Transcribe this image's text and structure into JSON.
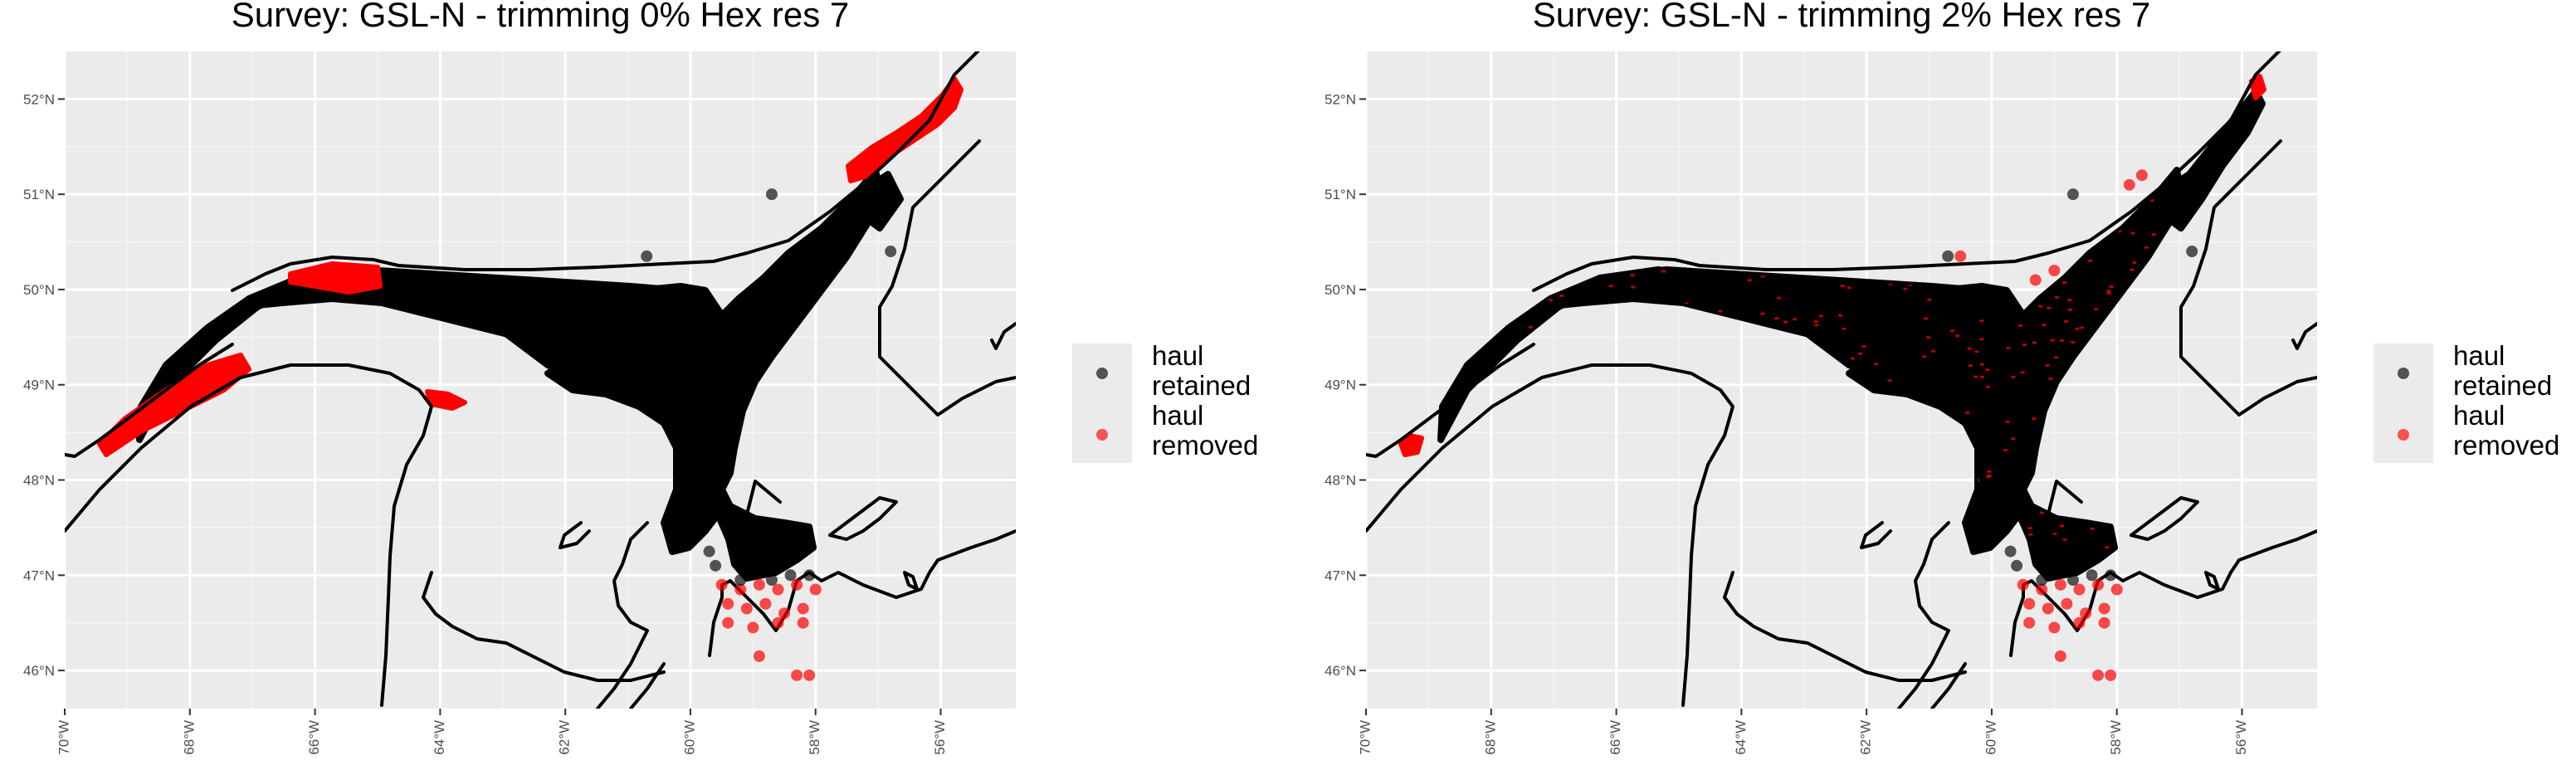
{
  "chart_data": [
    {
      "type": "scatter",
      "title": "Survey: GSL-N - trimming 0% Hex res 7",
      "xlim": [
        -70,
        -54.8
      ],
      "ylim": [
        45.6,
        52.5
      ],
      "x_ticks": [
        -70,
        -68,
        -66,
        -64,
        -62,
        -60,
        -58,
        -56
      ],
      "x_tick_labels": [
        "70°W",
        "68°W",
        "66°W",
        "64°W",
        "62°W",
        "60°W",
        "58°W",
        "56°W"
      ],
      "y_ticks": [
        46,
        47,
        48,
        49,
        50,
        51,
        52
      ],
      "y_tick_labels": [
        "46°N",
        "47°N",
        "48°N",
        "49°N",
        "50°N",
        "51°N",
        "52°N"
      ],
      "grid": true,
      "legend_position": "right",
      "legend": [
        {
          "line1": "haul",
          "line2": "retained",
          "color": "#000000"
        },
        {
          "line1": "haul",
          "line2": "removed",
          "color": "#ff0000"
        }
      ],
      "removed_clusters": [
        {
          "lon": [
            -69.1,
            -67.7
          ],
          "lat": [
            48.4,
            49.3
          ]
        },
        {
          "lon": [
            -66.3,
            -65.0
          ],
          "lat": [
            50.0,
            50.3
          ]
        },
        {
          "lon": [
            -57.2,
            -55.6
          ],
          "lat": [
            50.9,
            52.2
          ]
        },
        {
          "lon": [
            -64.4,
            -63.6
          ],
          "lat": [
            48.8,
            49.0
          ]
        }
      ],
      "removed_points": [
        [
          -59.5,
          46.9
        ],
        [
          -59.2,
          46.85
        ],
        [
          -58.9,
          46.9
        ],
        [
          -58.6,
          46.85
        ],
        [
          -58.3,
          46.9
        ],
        [
          -58.0,
          46.85
        ],
        [
          -59.4,
          46.7
        ],
        [
          -59.1,
          46.65
        ],
        [
          -58.8,
          46.7
        ],
        [
          -58.5,
          46.6
        ],
        [
          -58.2,
          46.65
        ],
        [
          -59.4,
          46.5
        ],
        [
          -59.0,
          46.45
        ],
        [
          -58.6,
          46.5
        ],
        [
          -58.2,
          46.5
        ],
        [
          -58.9,
          46.15
        ],
        [
          -58.3,
          45.95
        ],
        [
          -58.1,
          45.95
        ]
      ],
      "retained_outliers": [
        [
          -59.7,
          47.25
        ],
        [
          -59.6,
          47.1
        ],
        [
          -59.2,
          46.95
        ],
        [
          -58.7,
          46.95
        ],
        [
          -58.4,
          47.0
        ],
        [
          -58.1,
          47.0
        ],
        [
          -56.8,
          50.4
        ],
        [
          -60.7,
          50.35
        ],
        [
          -58.7,
          51.0
        ]
      ]
    },
    {
      "type": "scatter",
      "title": "Survey: GSL-N - trimming 2% Hex res 7",
      "xlim": [
        -70,
        -54.8
      ],
      "ylim": [
        45.6,
        52.5
      ],
      "x_ticks": [
        -70,
        -68,
        -66,
        -64,
        -62,
        -60,
        -58,
        -56
      ],
      "x_tick_labels": [
        "70°W",
        "68°W",
        "66°W",
        "64°W",
        "62°W",
        "60°W",
        "58°W",
        "56°W"
      ],
      "y_ticks": [
        46,
        47,
        48,
        49,
        50,
        51,
        52
      ],
      "y_tick_labels": [
        "46°N",
        "47°N",
        "48°N",
        "49°N",
        "50°N",
        "51°N",
        "52°N"
      ],
      "grid": true,
      "legend_position": "right",
      "legend": [
        {
          "line1": "haul",
          "line2": "retained",
          "color": "#000000"
        },
        {
          "line1": "haul",
          "line2": "removed",
          "color": "#ff0000"
        }
      ],
      "removed_clusters": [
        {
          "lon": [
            -69.2,
            -68.9
          ],
          "lat": [
            48.3,
            48.5
          ]
        },
        {
          "lon": [
            -55.8,
            -55.5
          ],
          "lat": [
            51.9,
            52.2
          ]
        }
      ],
      "removed_points": [
        [
          -59.5,
          46.9
        ],
        [
          -59.2,
          46.85
        ],
        [
          -58.9,
          46.9
        ],
        [
          -58.6,
          46.85
        ],
        [
          -58.3,
          46.9
        ],
        [
          -58.0,
          46.85
        ],
        [
          -59.4,
          46.7
        ],
        [
          -59.1,
          46.65
        ],
        [
          -58.8,
          46.7
        ],
        [
          -58.5,
          46.6
        ],
        [
          -58.2,
          46.65
        ],
        [
          -59.4,
          46.5
        ],
        [
          -59.0,
          46.45
        ],
        [
          -58.6,
          46.5
        ],
        [
          -58.2,
          46.5
        ],
        [
          -58.9,
          46.15
        ],
        [
          -58.3,
          45.95
        ],
        [
          -58.1,
          45.95
        ],
        [
          -57.8,
          51.1
        ],
        [
          -57.6,
          51.2
        ],
        [
          -60.5,
          50.35
        ],
        [
          -59.3,
          50.1
        ],
        [
          -59.0,
          50.2
        ]
      ],
      "retained_outliers": [
        [
          -59.7,
          47.25
        ],
        [
          -59.6,
          47.1
        ],
        [
          -59.2,
          46.95
        ],
        [
          -58.7,
          46.95
        ],
        [
          -58.4,
          47.0
        ],
        [
          -58.1,
          47.0
        ],
        [
          -56.8,
          50.4
        ],
        [
          -60.7,
          50.35
        ],
        [
          -58.7,
          51.0
        ]
      ]
    }
  ]
}
